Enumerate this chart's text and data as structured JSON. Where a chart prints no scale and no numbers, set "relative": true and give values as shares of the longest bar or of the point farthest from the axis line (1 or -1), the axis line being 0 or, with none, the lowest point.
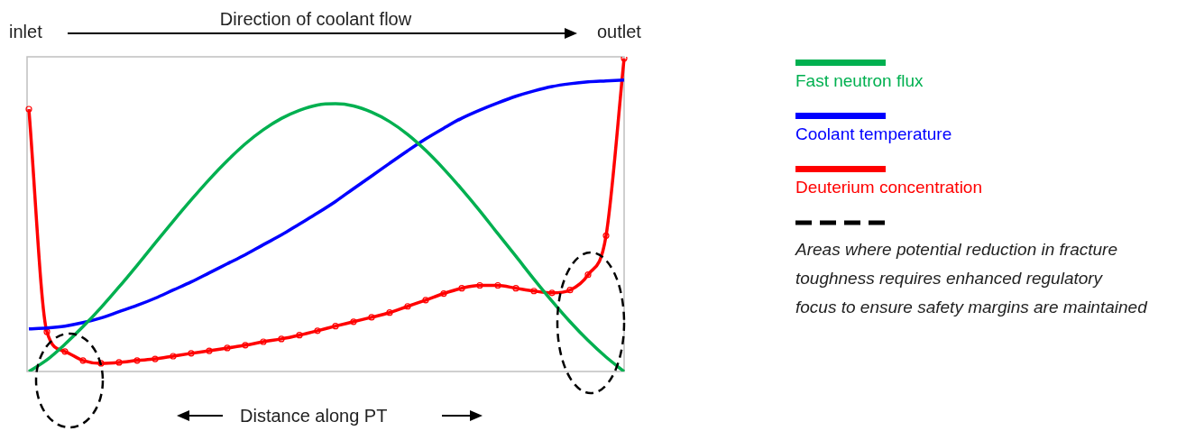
{
  "chart_data": {
    "type": "line",
    "title": "Direction of coolant flow",
    "xlabel": "Distance along PT",
    "relative": true,
    "legend": "right",
    "categories": [
      null,
      null,
      null,
      null,
      null,
      null,
      null,
      null,
      null,
      null,
      null,
      null,
      null,
      null,
      null,
      null,
      null,
      null,
      null,
      null,
      null,
      null,
      null,
      null,
      null,
      null,
      null,
      null,
      null,
      null,
      null,
      null,
      null,
      null
    ],
    "series": [
      {
        "name": "Fast neutron flux",
        "color": "#00b050",
        "marker": "none",
        "values": [
          0,
          0.037,
          0.087,
          0.143,
          0.204,
          0.27,
          0.339,
          0.41,
          0.48,
          0.548,
          0.613,
          0.673,
          0.727,
          0.772,
          0.808,
          0.834,
          0.851,
          0.855,
          0.848,
          0.828,
          0.798,
          0.757,
          0.706,
          0.647,
          0.582,
          0.513,
          0.44,
          0.368,
          0.295,
          0.225,
          0.159,
          0.099,
          0.046,
          0
        ]
      },
      {
        "name": "Coolant temperature",
        "color": "#0000ff",
        "marker": "none",
        "values": [
          0.136,
          0.139,
          0.145,
          0.156,
          0.171,
          0.191,
          0.211,
          0.234,
          0.26,
          0.286,
          0.315,
          0.344,
          0.373,
          0.405,
          0.436,
          0.471,
          0.506,
          0.543,
          0.584,
          0.624,
          0.665,
          0.705,
          0.743,
          0.777,
          0.809,
          0.835,
          0.858,
          0.879,
          0.896,
          0.91,
          0.919,
          0.925,
          0.928,
          0.931
        ]
      },
      {
        "name": "Deuterium concentration",
        "color": "#ff0000",
        "marker": "circle",
        "values": [
          0.838,
          0.127,
          0.064,
          0.035,
          0.026,
          0.029,
          0.035,
          0.04,
          0.049,
          0.058,
          0.066,
          0.075,
          0.084,
          0.095,
          0.104,
          0.116,
          0.13,
          0.145,
          0.159,
          0.173,
          0.188,
          0.208,
          0.228,
          0.249,
          0.266,
          0.275,
          0.275,
          0.266,
          0.257,
          0.251,
          0.26,
          0.309,
          0.434,
          1
        ]
      }
    ],
    "annotations": [
      "inlet",
      "outlet",
      "Areas where potential reduction in fracture toughness requires enhanced regulatory focus to ensure safety margins are maintained"
    ]
  }
}
